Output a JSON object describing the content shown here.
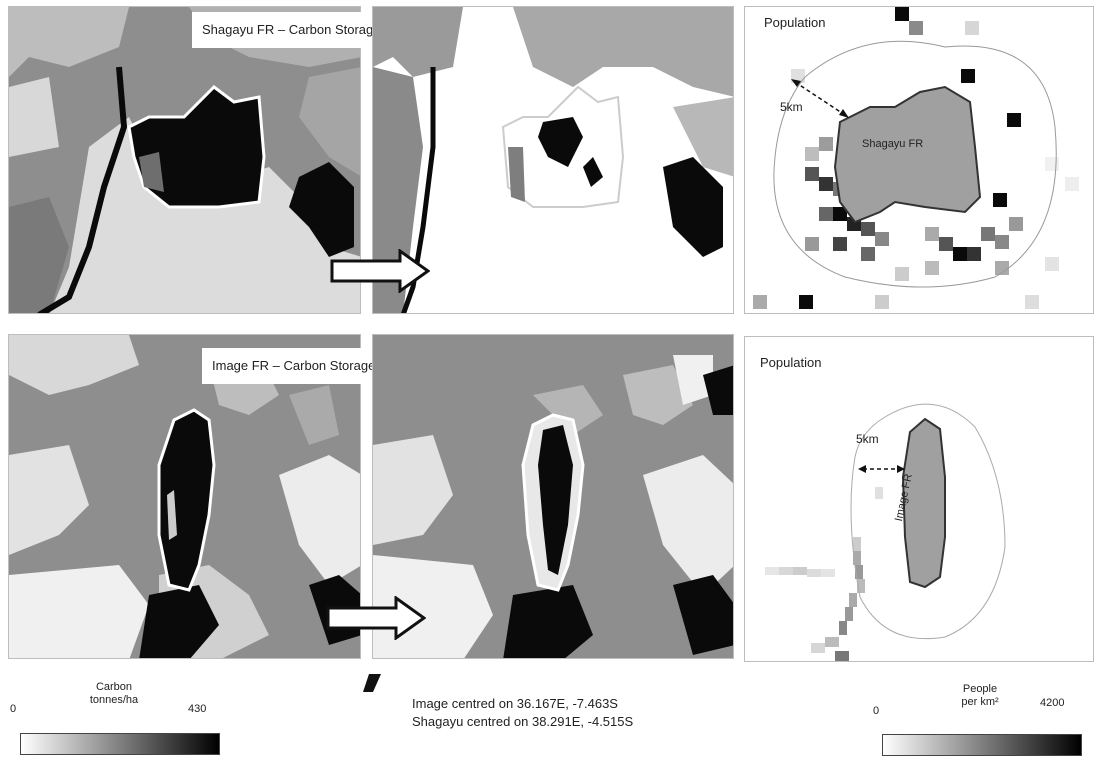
{
  "top_row": {
    "title": "Shagayu FR – Carbon Storage",
    "population_title": "Population",
    "distance_label": "5km",
    "reserve_label": "Shagayu FR"
  },
  "bottom_row": {
    "title": "Image FR – Carbon Storage",
    "population_title": "Population",
    "distance_label": "5km",
    "reserve_label": "Image FR"
  },
  "carbon_legend": {
    "min": "0",
    "max": "430",
    "title_line1": "Carbon",
    "title_line2": "tonnes/ha"
  },
  "population_legend": {
    "min": "0",
    "max": "4200",
    "title_line1": "People",
    "title_line2": "per km²"
  },
  "centres": {
    "line1": "Image centred on 36.167E, -7.463S",
    "line2": "Shagayu centred on 38.291E, -4.515S"
  },
  "colors": {
    "dark": "#0a0a0a",
    "mid_gray": "#8c8c8c",
    "light_gray": "#b4b4b4",
    "pale": "#e6e6e6"
  }
}
